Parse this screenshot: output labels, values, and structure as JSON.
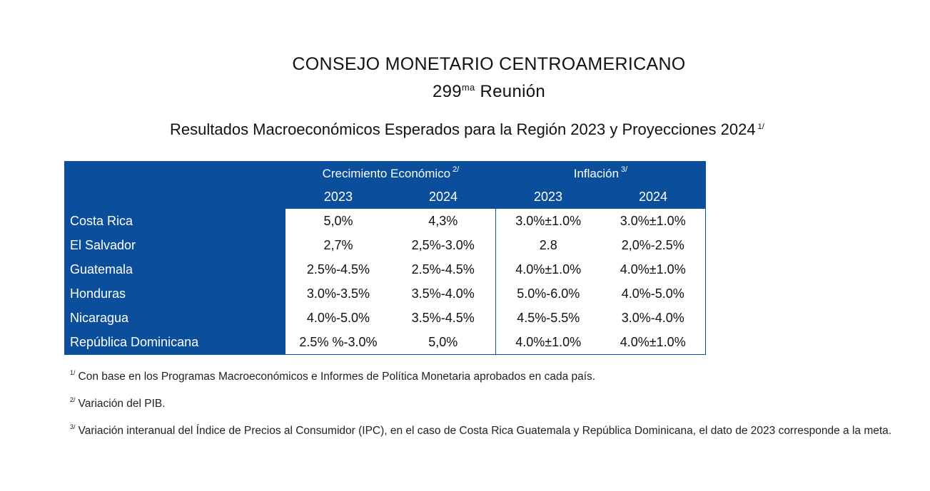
{
  "header": {
    "title": "CONSEJO MONETARIO CENTROAMERICANO",
    "meeting_number": "299",
    "meeting_suffix": "ma",
    "meeting_label": " Reunión",
    "subtitle": "Resultados Macroeconómicos Esperados para la Región 2023 y Proyecciones 2024",
    "subtitle_note": "1/"
  },
  "table": {
    "group_growth": "Crecimiento Económico",
    "group_growth_note": "2/",
    "group_inflation": "Inflación",
    "group_inflation_note": "3/",
    "years": [
      "2023",
      "2024",
      "2023",
      "2024"
    ],
    "rows": [
      {
        "country": "Costa Rica",
        "g2023": "5,0%",
        "g2024": "4,3%",
        "i2023": "3.0%±1.0%",
        "i2024": "3.0%±1.0%"
      },
      {
        "country": "El Salvador",
        "g2023": "2,7%",
        "g2024": "2,5%-3.0%",
        "i2023": "2.8",
        "i2024": "2,0%-2.5%"
      },
      {
        "country": "Guatemala",
        "g2023": "2.5%-4.5%",
        "g2024": "2.5%-4.5%",
        "i2023": "4.0%±1.0%",
        "i2024": "4.0%±1.0%"
      },
      {
        "country": "Honduras",
        "g2023": "3.0%-3.5%",
        "g2024": "3.5%-4.0%",
        "i2023": "5.0%-6.0%",
        "i2024": "4.0%-5.0%"
      },
      {
        "country": "Nicaragua",
        "g2023": "4.0%-5.0%",
        "g2024": "3.5%-4.5%",
        "i2023": "4.5%-5.5%",
        "i2024": "3.0%-4.0%"
      },
      {
        "country": "República Dominicana",
        "g2023": "2.5% %-3.0%",
        "g2024": "5,0%",
        "i2023": "4.0%±1.0%",
        "i2024": "4.0%±1.0%"
      }
    ]
  },
  "notes": [
    {
      "mark": "1/",
      "text": "Con base en los Programas Macroeconómicos e Informes de Política Monetaria aprobados en cada país."
    },
    {
      "mark": "2/",
      "text": "Variación del PIB."
    },
    {
      "mark": "3/",
      "text": "Variación interanual del Índice de Precios al Consumidor (IPC), en el caso de Costa Rica Guatemala y República Dominicana, el dato de 2023 corresponde a la meta."
    }
  ],
  "colors": {
    "header_blue": "#0b4f9c",
    "text": "#111111"
  }
}
